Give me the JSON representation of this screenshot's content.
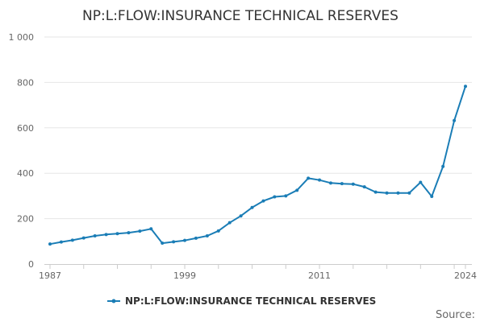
{
  "chart_data": {
    "type": "line",
    "title": "NP:L:FLOW:INSURANCE TECHNICAL RESERVES",
    "xlabel": "",
    "ylabel": "",
    "ylim": [
      0,
      1000
    ],
    "xlim": [
      1987,
      2024
    ],
    "x_tick_labels": [
      "1987",
      "1999",
      "2011",
      "2024"
    ],
    "y_tick_labels": [
      "0",
      "200",
      "400",
      "600",
      "800",
      "1 000"
    ],
    "y_tick_values": [
      0,
      200,
      400,
      600,
      800,
      1000
    ],
    "x_tick_values": [
      1987,
      1999,
      2011,
      2024
    ],
    "grid": true,
    "legend_position": "bottom",
    "series": [
      {
        "name": "NP:L:FLOW:INSURANCE TECHNICAL RESERVES",
        "color": "#1a7db6",
        "x": [
          1987,
          1988,
          1989,
          1990,
          1991,
          1992,
          1993,
          1994,
          1995,
          1996,
          1997,
          1998,
          1999,
          2000,
          2001,
          2002,
          2003,
          2004,
          2005,
          2006,
          2007,
          2008,
          2009,
          2010,
          2011,
          2012,
          2013,
          2014,
          2015,
          2016,
          2017,
          2018,
          2019,
          2020,
          2021,
          2022,
          2023,
          2024
        ],
        "values": [
          88,
          97,
          105,
          115,
          124,
          130,
          134,
          138,
          145,
          155,
          92,
          98,
          104,
          114,
          124,
          146,
          182,
          212,
          249,
          278,
          296,
          300,
          325,
          378,
          370,
          357,
          354,
          352,
          340,
          317,
          313,
          313,
          313,
          360,
          298,
          430,
          632,
          783
        ]
      }
    ]
  },
  "source_label": "Source:"
}
